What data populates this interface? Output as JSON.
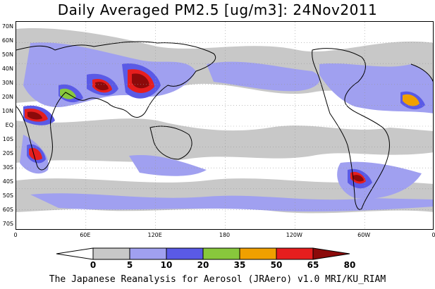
{
  "title": "Daily Averaged PM2.5 [ug/m3]: 24Nov2011",
  "footer": "The Japanese Reanalysis for Aerosol (JRAero) v1.0 MRI/KU_RIAM",
  "lat_labels": [
    "70N",
    "60N",
    "50N",
    "40N",
    "30N",
    "20N",
    "10N",
    "EQ",
    "10S",
    "20S",
    "30S",
    "40S",
    "50S",
    "60S",
    "70S"
  ],
  "lon_labels": [
    "0",
    "60E",
    "120E",
    "180",
    "120W",
    "60W",
    "0"
  ],
  "colorbar": {
    "thresholds": [
      "0",
      "5",
      "10",
      "20",
      "35",
      "50",
      "65",
      "80"
    ],
    "colors": [
      "#ffffff",
      "#c8c8c8",
      "#a0a0f0",
      "#5a5ae6",
      "#88c83c",
      "#f0a000",
      "#e61e1e",
      "#8c0a0a"
    ]
  },
  "colors": {
    "land_outline": "#000000",
    "grid": "#999999"
  }
}
